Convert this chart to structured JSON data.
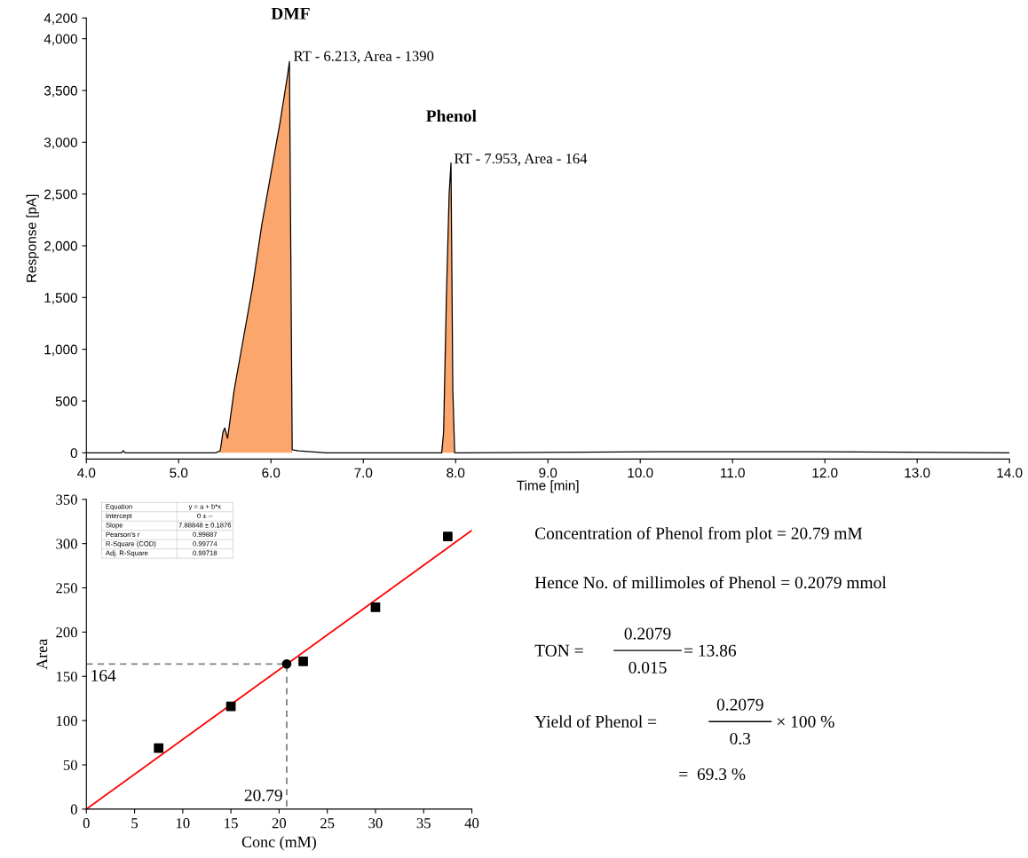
{
  "chart_data": [
    {
      "type": "line",
      "xlabel": "Time [min]",
      "ylabel": "Response [pA]",
      "xlim": [
        4.0,
        14.0
      ],
      "ylim": [
        -60,
        4200
      ],
      "xticks": [
        {
          "value": 4,
          "label": "4.0"
        },
        {
          "value": 5,
          "label": "5.0"
        },
        {
          "value": 6,
          "label": "6.0"
        },
        {
          "value": 7,
          "label": "7.0"
        },
        {
          "value": 8,
          "label": "8.0"
        },
        {
          "value": 9,
          "label": "9.0"
        },
        {
          "value": 10,
          "label": "10.0"
        },
        {
          "value": 11,
          "label": "11.0"
        },
        {
          "value": 12,
          "label": "12.0"
        },
        {
          "value": 13,
          "label": "13.0"
        },
        {
          "value": 14,
          "label": "14.0"
        }
      ],
      "yticks": [
        {
          "value": 0,
          "label": "0"
        },
        {
          "value": 500,
          "label": "500"
        },
        {
          "value": 1000,
          "label": "1,000"
        },
        {
          "value": 1500,
          "label": "1,500"
        },
        {
          "value": 2000,
          "label": "2,000"
        },
        {
          "value": 2500,
          "label": "2,500"
        },
        {
          "value": 3000,
          "label": "3,000"
        },
        {
          "value": 3500,
          "label": "3,500"
        },
        {
          "value": 4000,
          "label": "4,000"
        },
        {
          "value": 4200,
          "label": "4,200"
        }
      ],
      "series": [
        {
          "type": "area",
          "color": "#fba66d",
          "x": [
            5.42,
            5.45,
            5.48,
            5.5,
            5.53,
            5.6,
            5.7,
            5.8,
            5.9,
            6.0,
            6.1,
            6.18,
            6.2,
            6.23,
            6.25,
            7.84,
            7.87,
            7.9,
            7.93,
            7.95,
            7.97,
            7.99
          ],
          "values": [
            0,
            20,
            200,
            240,
            140,
            600,
            1100,
            1600,
            2200,
            2700,
            3200,
            3650,
            3780,
            30,
            null,
            0,
            200,
            1500,
            2500,
            2800,
            600,
            0
          ]
        },
        {
          "type": "line",
          "color": "#000000",
          "x": [
            4.0,
            4.38,
            4.4,
            4.42,
            5.4,
            5.45,
            5.48,
            5.5,
            5.53,
            5.6,
            5.7,
            5.8,
            5.9,
            6.0,
            6.1,
            6.18,
            6.2,
            6.23,
            6.3,
            6.6,
            7.85,
            7.87,
            7.9,
            7.93,
            7.95,
            7.97,
            7.99,
            8.1,
            10.2,
            11.9,
            14.0
          ],
          "values": [
            0,
            0,
            20,
            0,
            0,
            20,
            200,
            240,
            140,
            600,
            1100,
            1600,
            2200,
            2700,
            3200,
            3650,
            3780,
            30,
            20,
            0,
            0,
            200,
            1500,
            2500,
            2800,
            600,
            0,
            0,
            10,
            10,
            0
          ]
        }
      ],
      "annotations": [
        "DMF",
        {
          "text": "RT - 6.213, Area - 1390",
          "x": 6.213,
          "y": 3820
        },
        "Phenol",
        {
          "text": "RT - 7.953, Area - 164",
          "x": 7.953,
          "y": 2830
        }
      ]
    },
    {
      "type": "scatter",
      "xlabel": "Conc (mM)",
      "ylabel": "Area",
      "xlim": [
        0,
        40
      ],
      "ylim": [
        0,
        350
      ],
      "xticks": [
        0,
        5,
        10,
        15,
        20,
        25,
        30,
        35,
        40
      ],
      "yticks": [
        0,
        50,
        100,
        150,
        200,
        250,
        300,
        350
      ],
      "series": [
        {
          "type": "line",
          "color": "#808080",
          "line_style": "dashed",
          "x": [
            0,
            20.79,
            20.79
          ],
          "values": [
            164,
            164,
            0
          ]
        },
        {
          "type": "line",
          "color": "#ff0000",
          "x": [
            0,
            40
          ],
          "values": [
            0,
            315
          ]
        },
        {
          "type": "scatter",
          "color": "#000000",
          "marker": "square",
          "x": [
            7.5,
            15,
            22.5,
            30,
            37.5
          ],
          "values": [
            69,
            116,
            167,
            228,
            308
          ]
        },
        {
          "type": "scatter",
          "color": "#000000",
          "marker": "circle",
          "x": [
            20.79
          ],
          "values": [
            164
          ]
        }
      ],
      "annotations": [
        "Equation",
        "y = a + b*x",
        "Intercept",
        "0 ± --",
        "Slope",
        "7.88848 ± 0.1876",
        "Pearson's r",
        "0.99887",
        "R-Square (COD)",
        "0.99774",
        "Adj. R-Square",
        "0.99718",
        {
          "text": "164",
          "x": 0,
          "y": 164
        },
        {
          "text": "20.79",
          "x": 20.79,
          "y": 0
        }
      ]
    },
    {
      "type": "other",
      "annotations": [
        "Concentration of Phenol from plot = 20.79 mM",
        "Hence No. of millimoles of Phenol = 0.2079 mmol",
        "TON = ",
        "0.2079",
        "0.015",
        "= 13.86",
        "Yield of Phenol = ",
        "0.2079",
        "0.3",
        "× 100 %",
        "=  69.3 %"
      ]
    }
  ]
}
